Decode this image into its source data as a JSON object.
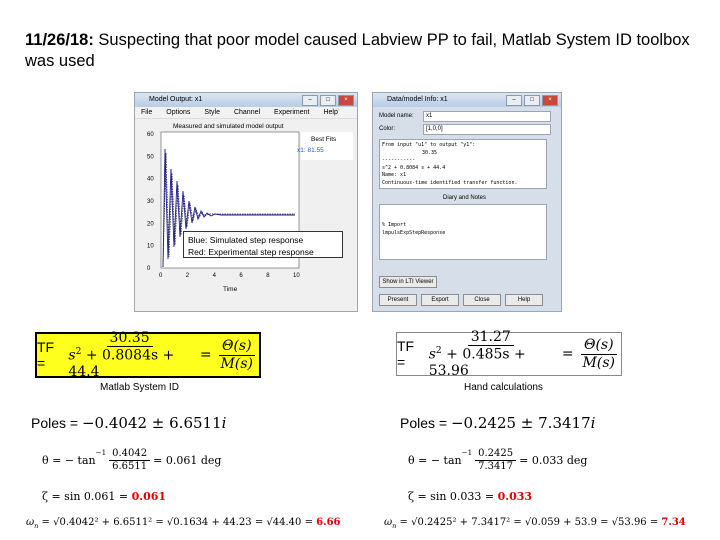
{
  "title": {
    "date": "11/26/18:",
    "text": "Suspecting that poor model caused Labview PP to fail, Matlab System ID toolbox was used"
  },
  "screenshot_left": {
    "window_title": "Model Output: x1",
    "menu": [
      "File",
      "Options",
      "Style",
      "Channel",
      "Experiment",
      "Help"
    ],
    "plot_title": "Measured and simulated model output",
    "best_fits_label": "Best Fits",
    "best_fits_value": "x1: 81.55",
    "y_ticks": [
      "60",
      "50",
      "40",
      "30",
      "20",
      "10",
      "0"
    ],
    "x_ticks": [
      "0",
      "2",
      "4",
      "6",
      "8",
      "10"
    ],
    "xlabel": "Time",
    "legend_blue": "Blue: Simulated step response",
    "legend_red": "Red: Experimental step response"
  },
  "screenshot_right": {
    "window_title": "Data/model Info: x1",
    "model_name_label": "Model name:",
    "model_name_value": "x1",
    "color_label": "Color:",
    "color_value": "[1,0,0]",
    "console_lines": [
      "From input \"u1\" to output \"y1\":",
      "30.35",
      "-----------",
      "s^2 + 0.8084 s + 44.4",
      "Name: x1",
      "Continuous-time identified transfer function."
    ],
    "diary_label": "Diary and Notes",
    "diary_lines": [
      "% Import",
      "lmpulsExpStepResponse"
    ],
    "show_button": "Show in LTI Viewer",
    "buttons": [
      "Present",
      "Export",
      "Close",
      "Help"
    ]
  },
  "tf_matlab": {
    "lhs": "TF =",
    "num": "30.35",
    "den_s2": "s",
    "den_rest": "+ 0.8084s + 44.4",
    "rhs_num": "Θ(s)",
    "rhs_den": "M(s)",
    "caption": "Matlab System ID"
  },
  "tf_hand": {
    "lhs": "TF =",
    "num": "31.27",
    "den_s2": "s",
    "den_rest": "+ 0.485s + 53.96",
    "rhs_num": "Θ(s)",
    "rhs_den": "M(s)",
    "caption": "Hand calculations"
  },
  "calc_left": {
    "poles_label": "Poles = ",
    "poles_value": "−0.4042 ± 6.6511",
    "theta_lhs": "θ = − tan",
    "theta_num": "0.4042",
    "theta_den": "6.6511",
    "theta_result": "= 0.061 deg",
    "zeta_lhs": "ζ = sin 0.061 = ",
    "zeta_result": "0.061",
    "omega_lhs": "ω",
    "omega_mid": "= √0.4042² + 6.6511² = √0.1634 + 44.23 = √44.40 = ",
    "omega_result": "6.66"
  },
  "calc_right": {
    "poles_label": "Poles = ",
    "poles_value": "−0.2425 ± 7.3417",
    "theta_lhs": "θ = − tan",
    "theta_num": "0.2425",
    "theta_den": "7.3417",
    "theta_result": "= 0.033 deg",
    "zeta_lhs": "ζ = sin 0.033 = ",
    "zeta_result": "0.033",
    "omega_lhs": "ω",
    "omega_mid": "= √0.2425² + 7.3417² = √0.059 + 53.9 = √53.96 = ",
    "omega_result": "7.34"
  }
}
